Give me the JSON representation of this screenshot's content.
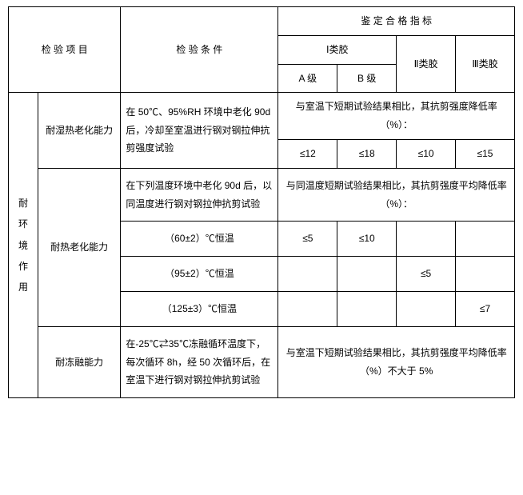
{
  "header": {
    "col_item": "检 验 项 目",
    "col_condition": "检 验 条 件",
    "col_criteria": "鉴 定 合 格 指 标",
    "cat_I": "Ⅰ类胶",
    "cat_II": "Ⅱ类胶",
    "cat_III": "Ⅲ类胶",
    "grade_A": "A 级",
    "grade_B": "B 级"
  },
  "group": {
    "label_chars": [
      "耐",
      "环",
      "境",
      "作",
      "用"
    ]
  },
  "row1": {
    "item": "耐湿热老化能力",
    "condition": "在 50℃、95%RH 环境中老化 90d 后，冷却至室温进行钢对钢拉伸抗剪强度试验",
    "note": "与室温下短期试验结果相比，其抗剪强度降低率（%）：",
    "v_A": "≤12",
    "v_B": "≤18",
    "v_II": "≤10",
    "v_III": "≤15"
  },
  "row2": {
    "item": "耐热老化能力",
    "condition_top": "在下列温度环境中老化 90d 后，以同温度进行钢对钢拉伸抗剪试验",
    "note_top": "与同温度短期试验结果相比，其抗剪强度平均降低率（%）：",
    "c60": "（60±2）℃恒温",
    "c95": "（95±2）℃恒温",
    "c125": "（125±3）℃恒温",
    "v60_A": "≤5",
    "v60_B": "≤10",
    "v95_II": "≤5",
    "v125_III": "≤7"
  },
  "row3": {
    "item": "耐冻融能力",
    "condition": "在-25℃⇄35℃冻融循环温度下，每次循环 8h，经 50 次循环后，在室温下进行钢对钢拉伸抗剪试验",
    "note": "与室温下短期试验结果相比，其抗剪强度平均降低率（%）不大于 5%"
  }
}
